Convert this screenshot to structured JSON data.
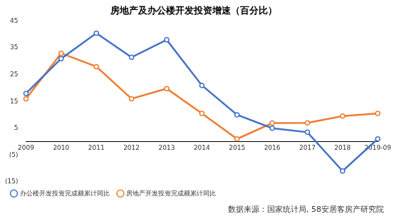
{
  "chart_data": {
    "type": "line",
    "title": "房地产及办公楼开发投资增速（百分比）",
    "source": "数据来源：国家统计局, 58安居客房产研究院",
    "categories": [
      "2009",
      "2010",
      "2011",
      "2012",
      "2013",
      "2014",
      "2015",
      "2016",
      "2017",
      "2018",
      "2019-09"
    ],
    "series": [
      {
        "name": "办公楼开发投资完成额累计同比",
        "color": "#4472c4",
        "marker": "circle",
        "values": [
          18,
          31,
          40.5,
          31.5,
          38,
          21,
          10,
          5,
          3.5,
          -11,
          1
        ]
      },
      {
        "name": "房地产开发投资完成额累计同比",
        "color": "#ed7d31",
        "marker": "circle",
        "values": [
          16,
          33,
          28,
          16,
          19.8,
          10.5,
          1,
          6.9,
          7,
          9.5,
          10.5
        ]
      }
    ],
    "ylim": [
      -15,
      45
    ],
    "yticks": [
      {
        "value": -15,
        "label": "(15)"
      },
      {
        "value": -5,
        "label": "(5)"
      },
      5,
      15,
      25,
      35,
      45
    ],
    "grid": false,
    "legend": "bottom-left"
  }
}
